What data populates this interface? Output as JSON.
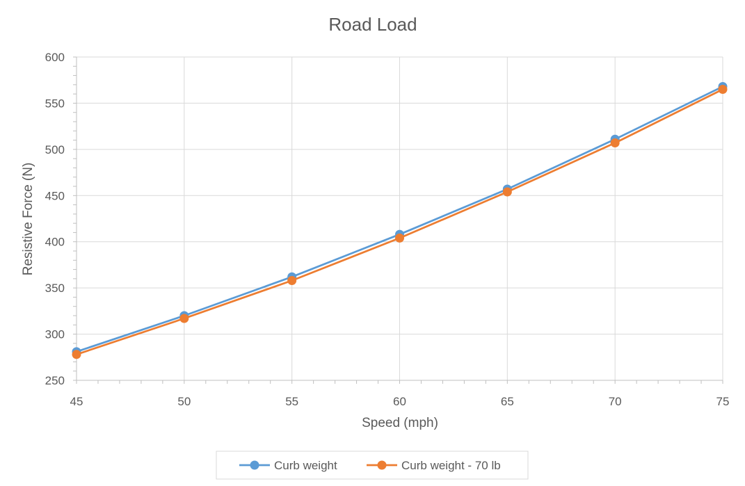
{
  "chart_data": {
    "type": "line",
    "title": "Road Load",
    "xlabel": "Speed (mph)",
    "ylabel": "Resistive Force (N)",
    "xlim": [
      45,
      75
    ],
    "ylim": [
      250,
      600
    ],
    "x_ticks": [
      45,
      50,
      55,
      60,
      65,
      70,
      75
    ],
    "y_ticks": [
      250,
      300,
      350,
      400,
      450,
      500,
      550,
      600
    ],
    "x_minor_step": 1,
    "y_minor_step": 10,
    "grid": true,
    "legend_position": "bottom",
    "series": [
      {
        "name": "Curb weight",
        "color": "#5B9BD5",
        "x": [
          45,
          50,
          55,
          60,
          65,
          70,
          75
        ],
        "values": [
          281,
          320,
          362,
          408,
          457,
          511,
          568
        ]
      },
      {
        "name": "Curb weight - 70 lb",
        "color": "#ED7D31",
        "x": [
          45,
          50,
          55,
          60,
          65,
          70,
          75
        ],
        "values": [
          278,
          317,
          358,
          404,
          454,
          507,
          565
        ]
      }
    ]
  }
}
